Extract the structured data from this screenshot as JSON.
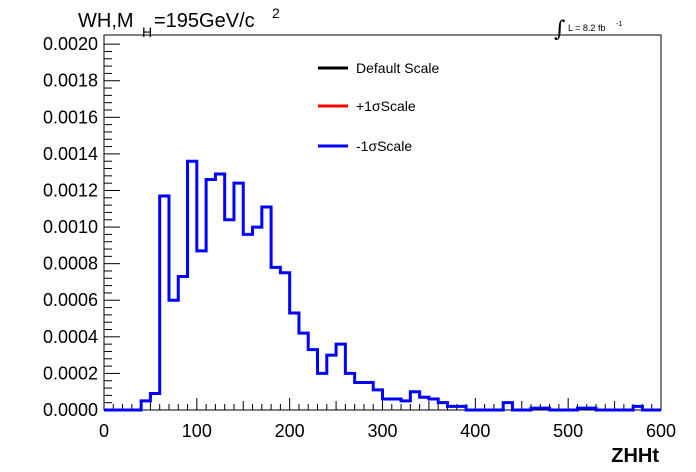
{
  "chart_data": {
    "type": "histogram",
    "title": {
      "prefix": "WH,M",
      "subscript": "H",
      "middle": "=195GeV/c",
      "superscript": "2"
    },
    "lumi": {
      "integral_symbol": "∫",
      "text": "L = 8.2 fb",
      "superscript": "-1"
    },
    "xlabel": "ZHHt",
    "ylabel": "",
    "xlim": [
      0,
      600
    ],
    "ylim": [
      0,
      0.00205
    ],
    "x_ticks": [
      "0",
      "100",
      "200",
      "300",
      "400",
      "500",
      "600"
    ],
    "y_ticks": [
      "0.0000",
      "0.0002",
      "0.0004",
      "0.0006",
      "0.0008",
      "0.0010",
      "0.0012",
      "0.0014",
      "0.0016",
      "0.0018",
      "0.0020"
    ],
    "bin_width": 10,
    "legend": {
      "placement": "top-right",
      "entries": [
        {
          "label": "Default Scale",
          "color": "#000000"
        },
        {
          "label": "+1σScale",
          "color": "#ff0000"
        },
        {
          "label": "-1σScale",
          "color": "#0000ff"
        }
      ]
    },
    "series": [
      {
        "name": "-1σScale",
        "color": "#0000ff",
        "bin_edges_start": 0,
        "values": [
          0,
          0,
          0,
          0,
          5e-05,
          9e-05,
          0.00117,
          0.0006,
          0.00073,
          0.00136,
          0.00087,
          0.00126,
          0.00129,
          0.00104,
          0.00124,
          0.00096,
          0.001,
          0.00111,
          0.00078,
          0.00075,
          0.00053,
          0.00042,
          0.00033,
          0.0002,
          0.0003,
          0.00036,
          0.0002,
          0.00015,
          0.00015,
          0.00011,
          6e-05,
          6e-05,
          5e-05,
          0.0001,
          7e-05,
          6e-05,
          4e-05,
          2e-05,
          2e-05,
          0,
          0,
          0,
          0,
          4e-05,
          0,
          0,
          1e-05,
          1e-05,
          0,
          0,
          0,
          1e-05,
          1e-05,
          0,
          0,
          0,
          0,
          2e-05,
          0,
          0
        ]
      }
    ]
  }
}
